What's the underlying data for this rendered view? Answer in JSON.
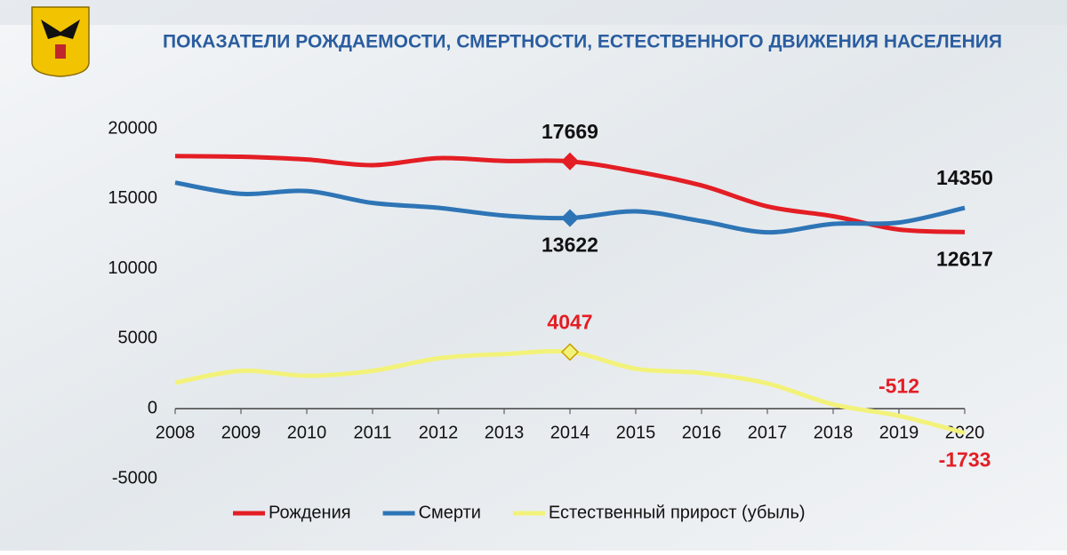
{
  "chart_data": {
    "type": "line",
    "title": "ПОКАЗАТЕЛИ РОЖДАЕМОСТИ, СМЕРТНОСТИ, ЕСТЕСТВЕННОГО ДВИЖЕНИЯ НАСЕЛЕНИЯ",
    "categories": [
      "2008",
      "2009",
      "2010",
      "2011",
      "2012",
      "2013",
      "2014",
      "2015",
      "2016",
      "2017",
      "2018",
      "2019",
      "2020"
    ],
    "ylim": [
      -5000,
      20000
    ],
    "yticks": [
      -5000,
      0,
      5000,
      10000,
      15000,
      20000
    ],
    "legend": "bottom",
    "series": [
      {
        "name": "Рождения",
        "color": "#e31e24",
        "label_color": "#111111",
        "labeled": [
          6,
          12
        ],
        "marker": 6,
        "values": [
          18050,
          18000,
          17800,
          17400,
          17900,
          17700,
          17669,
          16950,
          15950,
          14450,
          13750,
          12800,
          12617
        ]
      },
      {
        "name": "Смерти",
        "color": "#2e75b6",
        "label_color": "#111111",
        "labeled": [
          6,
          12
        ],
        "marker": 6,
        "values": [
          16150,
          15350,
          15550,
          14700,
          14350,
          13800,
          13622,
          14100,
          13400,
          12600,
          13200,
          13300,
          14350
        ]
      },
      {
        "name": "Естественный прирост (убыль)",
        "color": "#f2f27a",
        "label_color": "#e31e24",
        "labeled": [
          6,
          11,
          12
        ],
        "marker": 6,
        "values": [
          1850,
          2700,
          2350,
          2700,
          3600,
          3900,
          4047,
          2850,
          2550,
          1800,
          300,
          -512,
          -1733
        ]
      }
    ]
  }
}
